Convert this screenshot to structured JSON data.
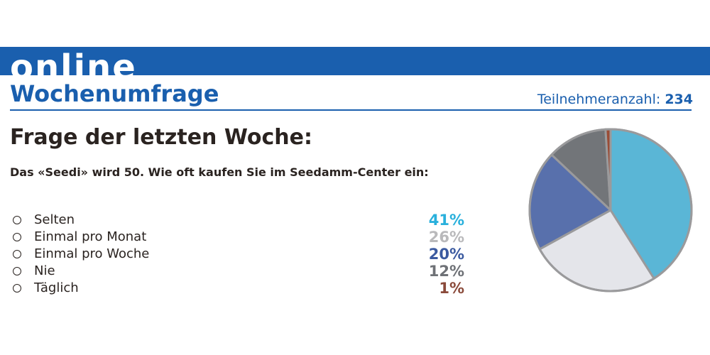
{
  "header": {
    "brand": "online",
    "title": "Wochenumfrage",
    "participants_label": "Teilnehmeranzahl:",
    "participants_count": "234",
    "colors": {
      "brand_blue": "#1a5fae"
    }
  },
  "question": {
    "heading": "Frage der letzten Woche:",
    "text": "Das «Seedi» wird 50. Wie oft kaufen Sie im Seedamm-Center ein:"
  },
  "answers": [
    {
      "label": "Selten",
      "percent": "41%",
      "color": "#29b0dc"
    },
    {
      "label": "Einmal pro Monat",
      "percent": "26%",
      "color": "#b9b9bb"
    },
    {
      "label": "Einmal pro Woche",
      "percent": "20%",
      "color": "#3b5aa0"
    },
    {
      "label": "Nie",
      "percent": "12%",
      "color": "#6e7176"
    },
    {
      "label": "Täglich",
      "percent": "1%",
      "color": "#8a4a3a"
    }
  ],
  "chart_data": {
    "type": "pie",
    "categories": [
      "Selten",
      "Einmal pro Monat",
      "Einmal pro Woche",
      "Nie",
      "Täglich"
    ],
    "values": [
      41,
      26,
      20,
      12,
      1
    ],
    "unit": "%",
    "slice_colors": [
      "#5ab6d6",
      "#e4e5ea",
      "#5870ac",
      "#727579",
      "#9a4c36"
    ],
    "edge_color": "#9a9a9c",
    "start": "top, clockwise"
  }
}
